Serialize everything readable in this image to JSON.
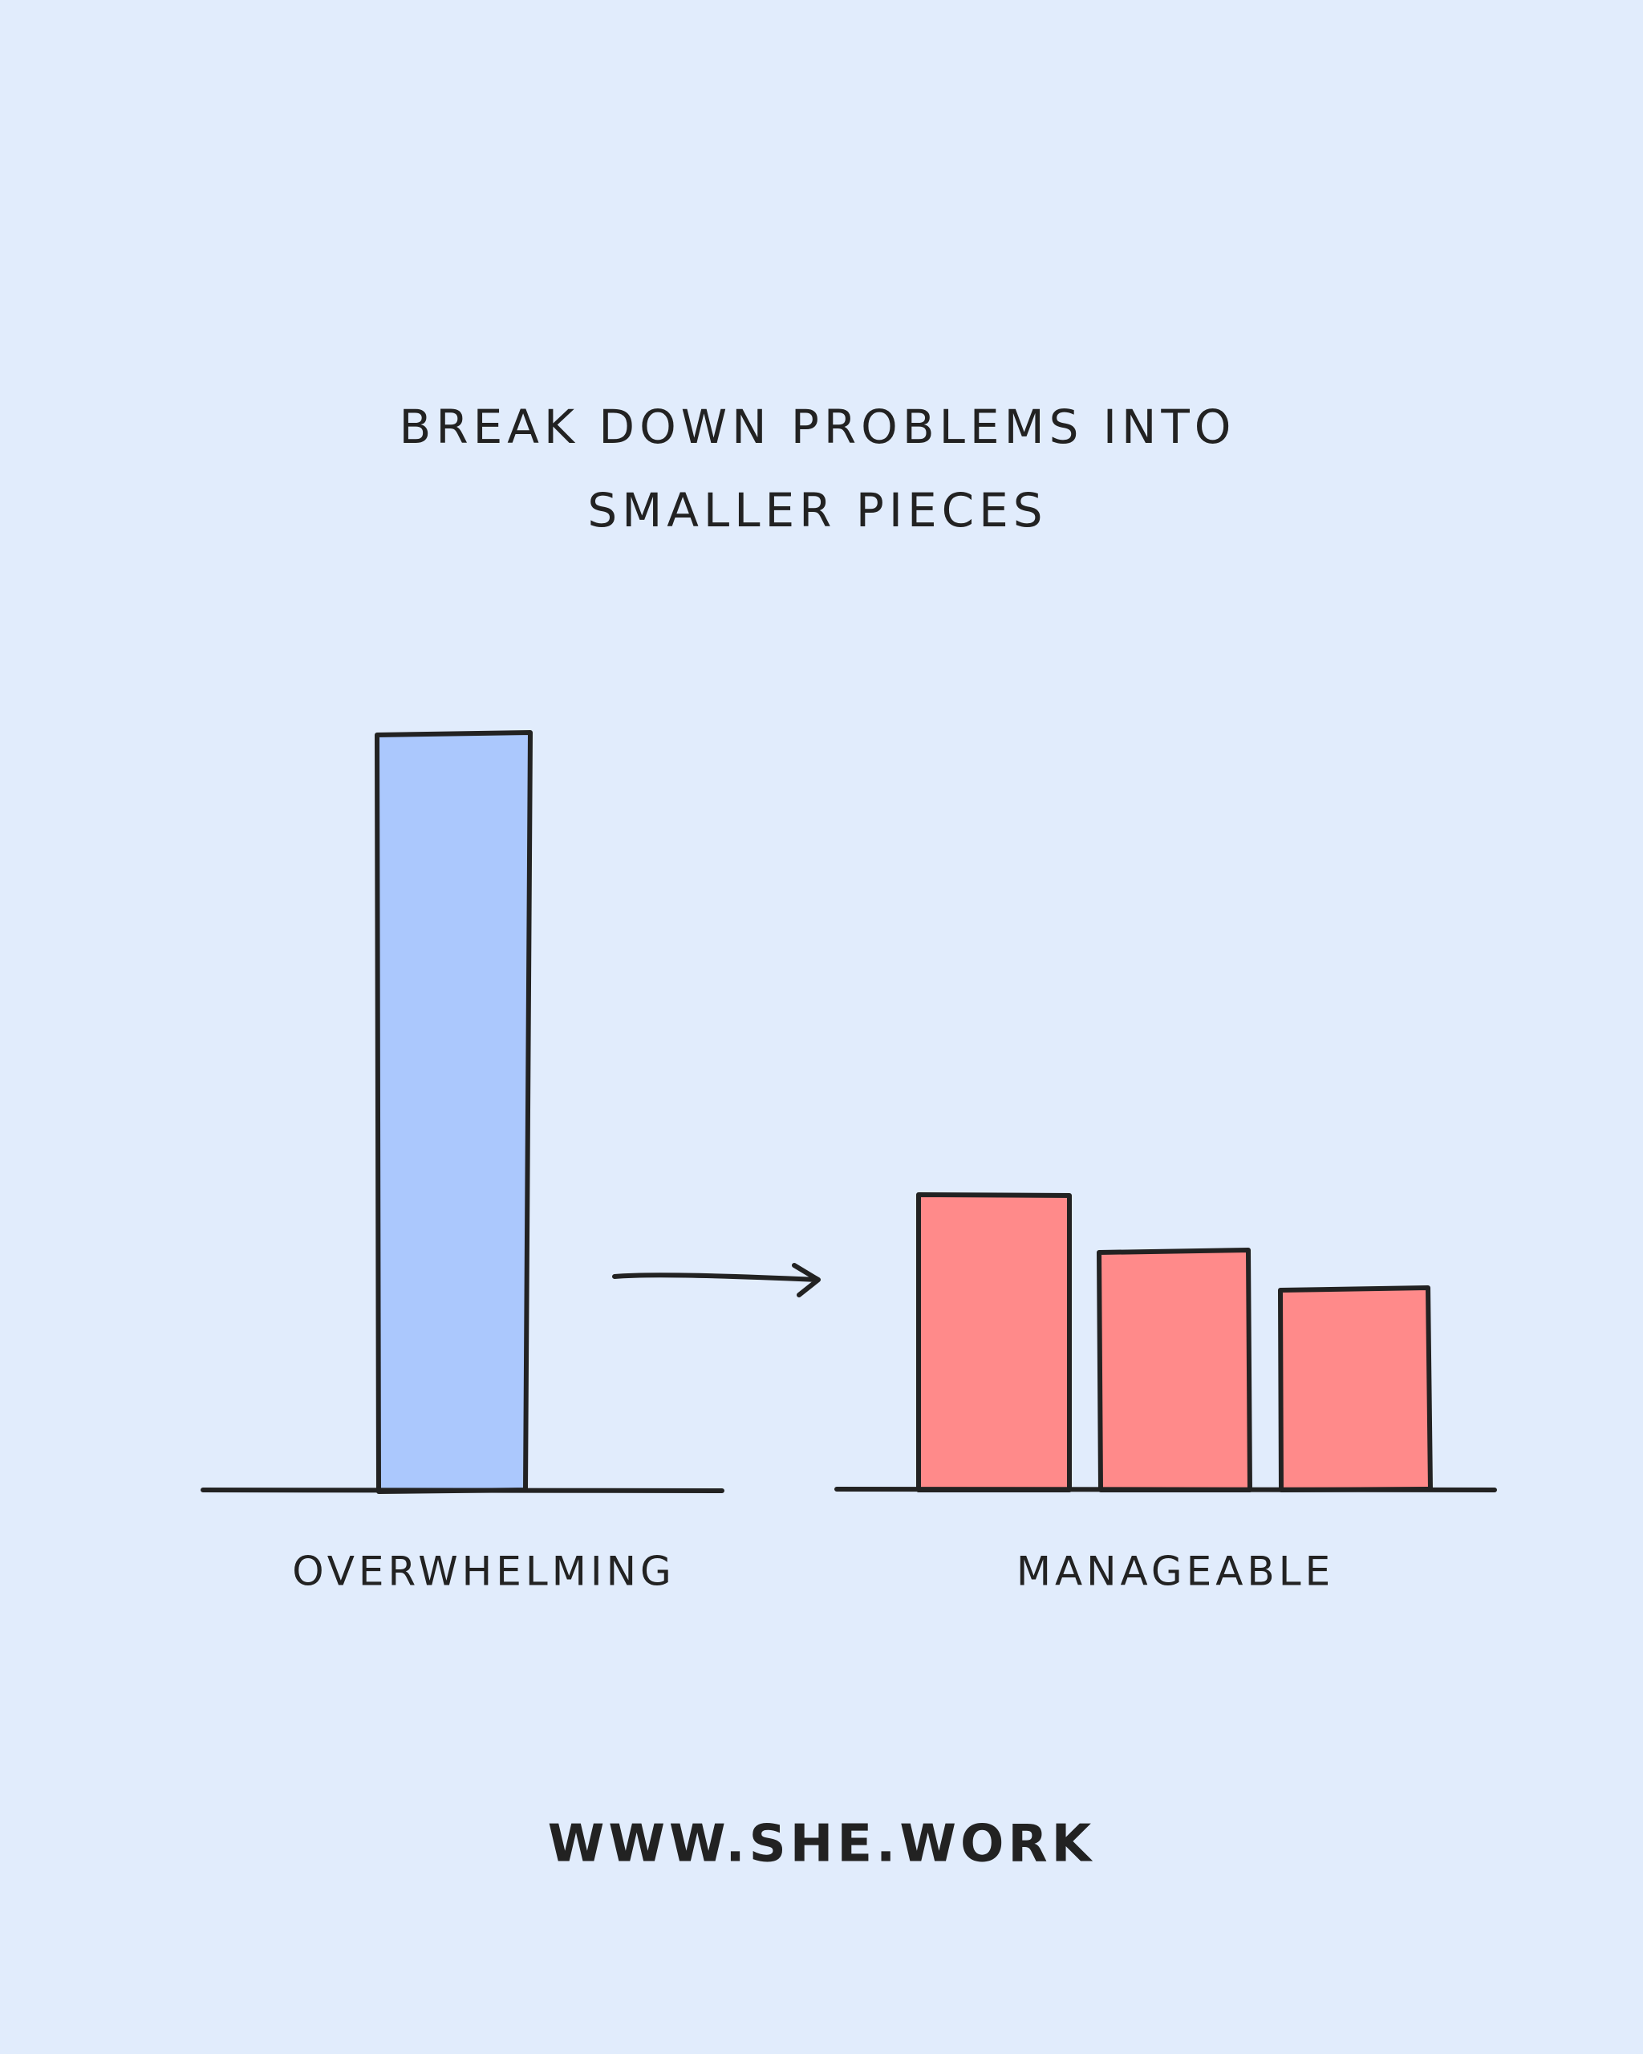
{
  "title": {
    "lines": [
      "BREAK DOWN PROBLEMS INTO",
      "SMALLER PIECES"
    ]
  },
  "panels": [
    {
      "label": "OVERWHELMING"
    },
    {
      "label": "MANAGEABLE"
    }
  ],
  "footer": {
    "url": "WWW.SHE.WORK"
  }
}
